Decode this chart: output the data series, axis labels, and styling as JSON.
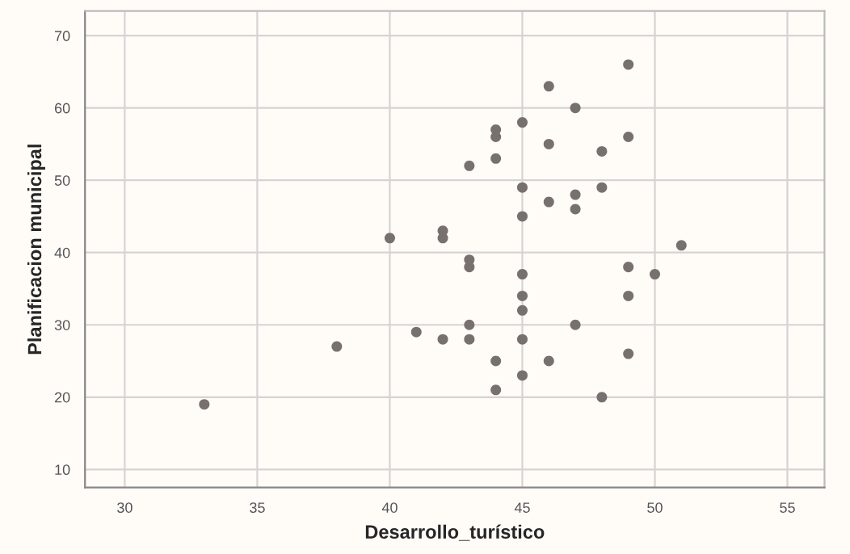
{
  "chart_data": {
    "type": "scatter",
    "xlabel": "Desarrollo_turístico",
    "ylabel": "Planificacion municipal",
    "xlim": [
      28.5,
      56.4
    ],
    "ylim": [
      7.5,
      73.4
    ],
    "xticks": [
      30,
      35,
      40,
      45,
      50,
      55
    ],
    "yticks": [
      10,
      20,
      30,
      40,
      50,
      60,
      70
    ],
    "grid": true,
    "marker": "circle",
    "series": [
      {
        "color": "#78706f",
        "x": [
          33,
          38,
          40,
          41,
          42,
          42,
          42,
          43,
          43,
          43,
          43,
          43,
          44,
          44,
          44,
          44,
          44,
          45,
          45,
          45,
          45,
          45,
          45,
          45,
          45,
          46,
          46,
          46,
          46,
          47,
          47,
          47,
          47,
          48,
          48,
          48,
          49,
          49,
          49,
          49,
          49,
          50,
          51
        ],
        "values": [
          19,
          27,
          42,
          29,
          43,
          42,
          28,
          52,
          39,
          38,
          30,
          28,
          57,
          56,
          53,
          25,
          21,
          58,
          49,
          45,
          37,
          34,
          32,
          28,
          23,
          63,
          55,
          47,
          25,
          60,
          48,
          46,
          30,
          54,
          49,
          20,
          66,
          56,
          38,
          34,
          26,
          37,
          41
        ]
      }
    ]
  }
}
